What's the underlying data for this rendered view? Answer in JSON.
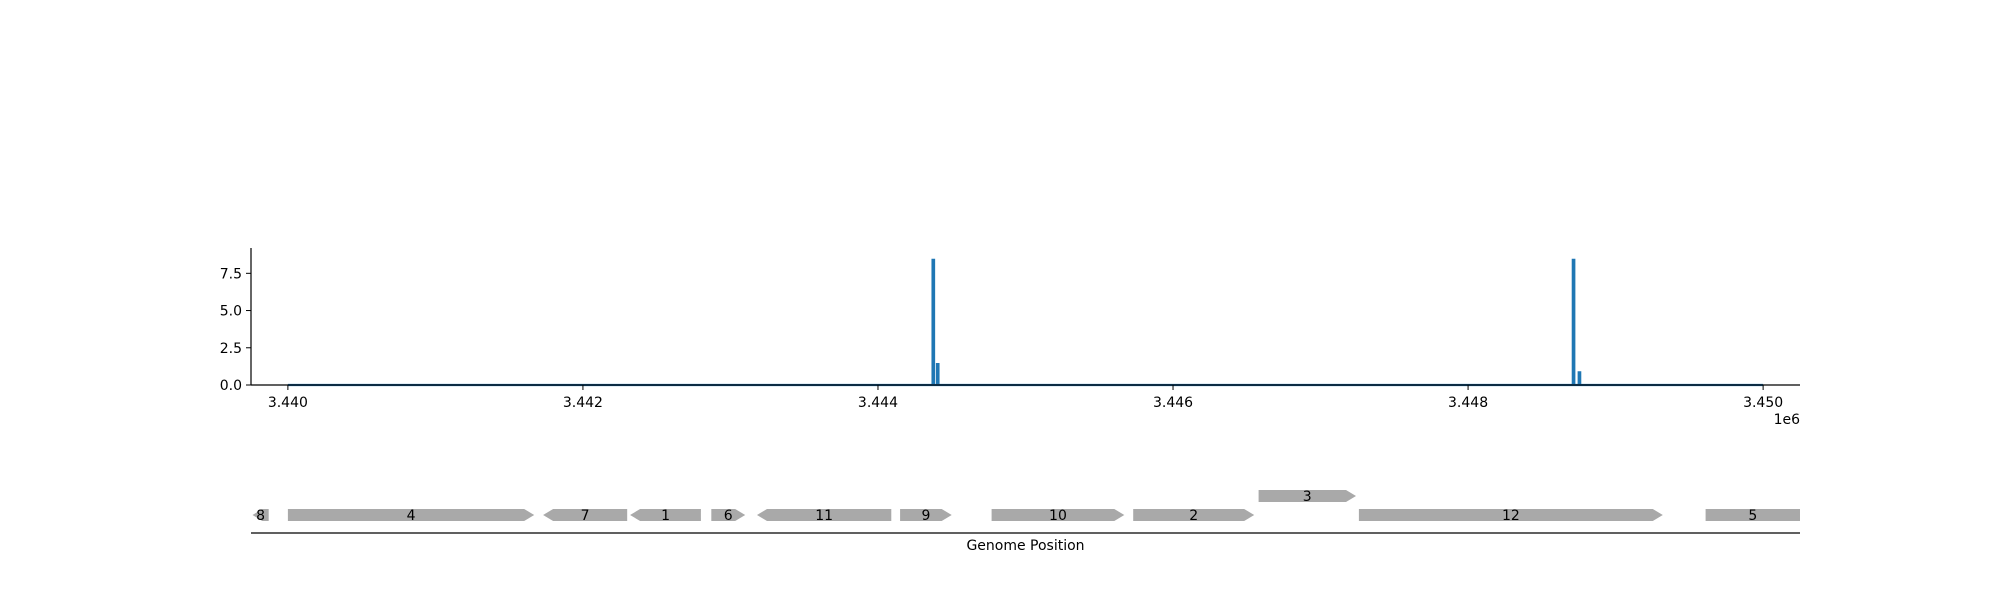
{
  "chart_data": [
    {
      "type": "line",
      "title": "",
      "xlabel": "",
      "ylabel": "",
      "x_offset_label": "1e6",
      "xlim": [
        3.43975,
        3.45025
      ],
      "ylim": [
        0,
        9.2
      ],
      "x_ticks": [
        3.44,
        3.442,
        3.444,
        3.446,
        3.448,
        3.45
      ],
      "x_tick_labels": [
        "3.440",
        "3.442",
        "3.444",
        "3.446",
        "3.448",
        "3.450"
      ],
      "y_ticks": [
        0.0,
        2.5,
        5.0,
        7.5
      ],
      "y_tick_labels": [
        "0.0",
        "2.5",
        "5.0",
        "7.5"
      ],
      "grid": false,
      "color": "#1f77b4",
      "series": [
        {
          "points": [
            [
              3.44,
              0
            ],
            [
              3.44437,
              0
            ],
            [
              3.44437,
              8.4
            ],
            [
              3.44438,
              8.4
            ],
            [
              3.44438,
              0
            ],
            [
              3.4444,
              0
            ],
            [
              3.4444,
              1.4
            ],
            [
              3.44441,
              1.4
            ],
            [
              3.44441,
              0
            ],
            [
              3.44871,
              0
            ],
            [
              3.44871,
              8.4
            ],
            [
              3.44872,
              8.4
            ],
            [
              3.44872,
              0
            ],
            [
              3.44875,
              0
            ],
            [
              3.44875,
              0.85
            ],
            [
              3.44876,
              0.85
            ],
            [
              3.44876,
              0
            ],
            [
              3.45,
              0
            ]
          ]
        }
      ]
    },
    {
      "type": "gene-map",
      "xlabel": "Genome Position",
      "xlim": [
        3.43975,
        3.45025
      ],
      "feature_color": "#a9a9a9",
      "features": [
        {
          "label": "8",
          "start": 3.43976,
          "end": 3.43987,
          "strand": -1,
          "track": 0
        },
        {
          "label": "4",
          "start": 3.44,
          "end": 3.44167,
          "strand": 1,
          "track": 0
        },
        {
          "label": "7",
          "start": 3.44173,
          "end": 3.4423,
          "strand": -1,
          "track": 0
        },
        {
          "label": "1",
          "start": 3.44232,
          "end": 3.4428,
          "strand": -1,
          "track": 0
        },
        {
          "label": "6",
          "start": 3.44287,
          "end": 3.4431,
          "strand": 1,
          "track": 0
        },
        {
          "label": "11",
          "start": 3.44318,
          "end": 3.44409,
          "strand": -1,
          "track": 0
        },
        {
          "label": "9",
          "start": 3.44415,
          "end": 3.4445,
          "strand": 1,
          "track": 0
        },
        {
          "label": "10",
          "start": 3.44477,
          "end": 3.44567,
          "strand": 1,
          "track": 0
        },
        {
          "label": "2",
          "start": 3.44573,
          "end": 3.44655,
          "strand": 1,
          "track": 0
        },
        {
          "label": "3",
          "start": 3.44658,
          "end": 3.44724,
          "strand": 1,
          "track": 1
        },
        {
          "label": "12",
          "start": 3.44726,
          "end": 3.44932,
          "strand": 1,
          "track": 0
        },
        {
          "label": "5",
          "start": 3.44961,
          "end": 3.4511,
          "strand": 1,
          "track": 0
        }
      ]
    }
  ]
}
